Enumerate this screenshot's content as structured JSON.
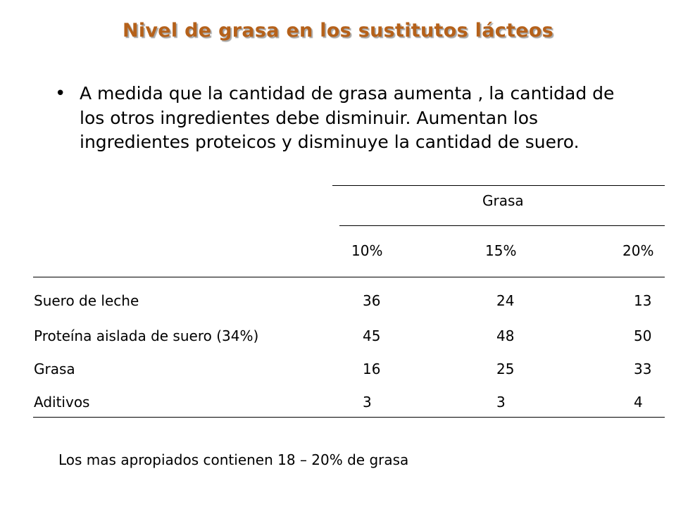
{
  "title": "Nivel de grasa en los sustitutos lácteos",
  "bullet": {
    "marker": "•",
    "text": "A medida que la cantidad de grasa aumenta , la cantidad de los otros ingredientes debe disminuir. Aumentan los ingredientes proteicos y disminuye la cantidad de suero."
  },
  "table": {
    "group_header": "Grasa",
    "columns": [
      "10%",
      "15%",
      "20%"
    ],
    "rows": [
      {
        "label": "Suero de leche",
        "values": [
          "36",
          "24",
          "13"
        ]
      },
      {
        "label": "Proteína aislada de suero (34%)",
        "values": [
          "45",
          "48",
          "50"
        ]
      },
      {
        "label": "Grasa",
        "values": [
          "16",
          "25",
          "33"
        ]
      },
      {
        "label": "Aditivos",
        "values": [
          "3",
          "3",
          "4"
        ]
      }
    ]
  },
  "note": "Los mas apropiados contienen 18 – 20% de grasa",
  "colors": {
    "title": "#b5611a",
    "text": "#000000",
    "background": "#ffffff"
  }
}
